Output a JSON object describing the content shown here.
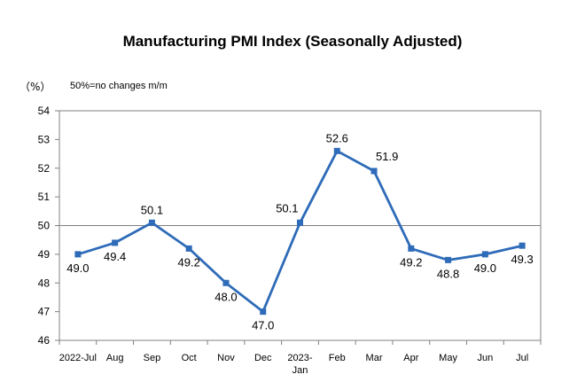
{
  "chart_data": {
    "type": "line",
    "title": "Manufacturing PMI Index (Seasonally Adjusted)",
    "ylabel": "（%）",
    "annotation": "50%=no changes m/m",
    "categories": [
      "2022-Jul",
      "Aug",
      "Sep",
      "Oct",
      "Nov",
      "Dec",
      "2023-Jan",
      "Feb",
      "Mar",
      "Apr",
      "May",
      "Jun",
      "Jul"
    ],
    "category_display": [
      [
        "2022-Jul"
      ],
      [
        "Aug"
      ],
      [
        "Sep"
      ],
      [
        "Oct"
      ],
      [
        "Nov"
      ],
      [
        "Dec"
      ],
      [
        "2023-",
        "Jan"
      ],
      [
        "Feb"
      ],
      [
        "Mar"
      ],
      [
        "Apr"
      ],
      [
        "May"
      ],
      [
        "Jun"
      ],
      [
        "Jul"
      ]
    ],
    "values": [
      49.0,
      49.4,
      50.1,
      49.2,
      48.0,
      47.0,
      50.1,
      52.6,
      51.9,
      49.2,
      48.8,
      49.0,
      49.3
    ],
    "data_labels": [
      "49.0",
      "49.4",
      "50.1",
      "49.2",
      "48.0",
      "47.0",
      "50.1",
      "52.6",
      "51.9",
      "49.2",
      "48.8",
      "49.0",
      "49.3"
    ],
    "label_placement": [
      "below",
      "below",
      "above",
      "below",
      "below",
      "below",
      "above-left",
      "above",
      "above-right",
      "below",
      "below",
      "below",
      "below"
    ],
    "ylim": [
      46,
      54
    ],
    "yticks": [
      46,
      47,
      48,
      49,
      50,
      51,
      52,
      53,
      54
    ],
    "reference_line": 50,
    "grid": false,
    "colors": {
      "series": "#2e6bb8",
      "axis": "#808080",
      "reference": "#808080"
    }
  }
}
